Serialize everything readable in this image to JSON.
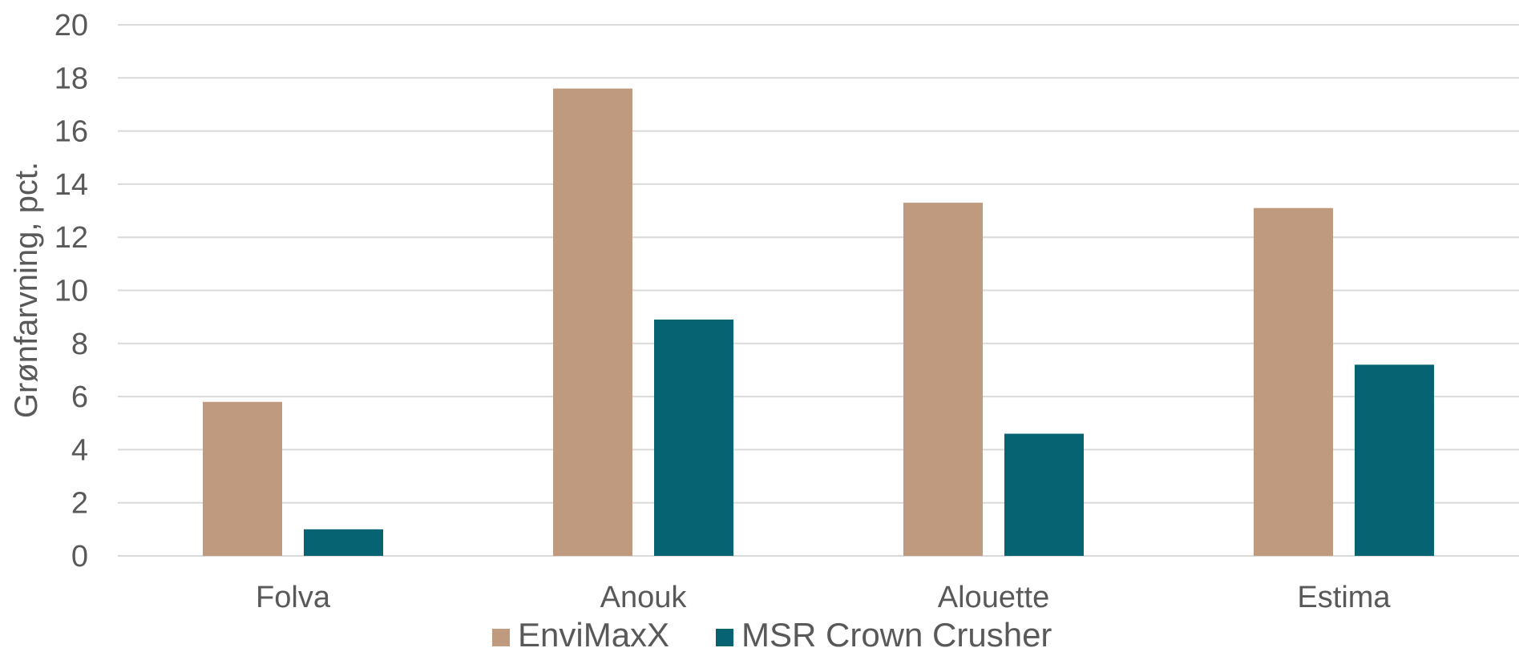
{
  "chart_data": {
    "type": "bar",
    "title": "",
    "xlabel": "",
    "ylabel": "Grønfarvning, pct.",
    "categories": [
      "Folva",
      "Anouk",
      "Alouette",
      "Estima"
    ],
    "series": [
      {
        "name": "EnviMaxX",
        "color": "#BF9A7E",
        "values": [
          5.8,
          17.6,
          13.3,
          13.1
        ]
      },
      {
        "name": "MSR Crown Crusher",
        "color": "#066472",
        "values": [
          1.0,
          8.9,
          4.6,
          7.2
        ]
      }
    ],
    "ylim": [
      0,
      20
    ],
    "yticks": [
      0,
      2,
      4,
      6,
      8,
      10,
      12,
      14,
      16,
      18,
      20
    ],
    "grid": true,
    "legend_position": "bottom"
  }
}
